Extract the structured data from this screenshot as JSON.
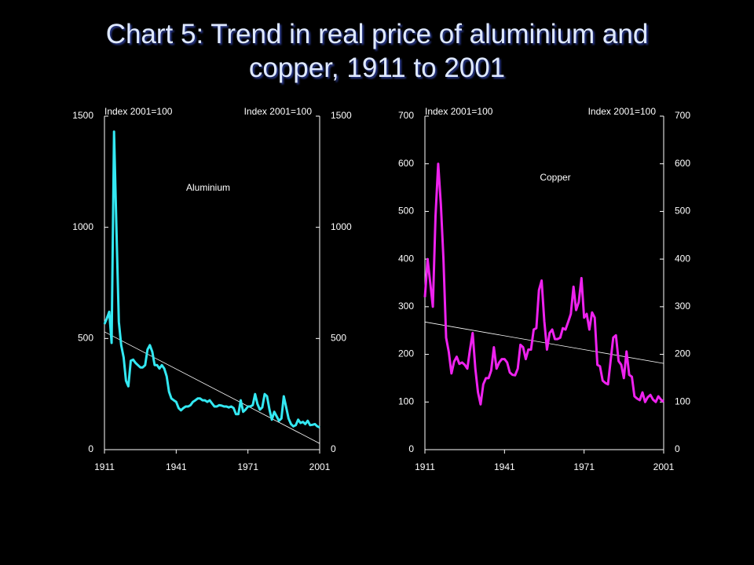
{
  "title": "Chart 5: Trend in real price of aluminium and copper, 1911 to 2001",
  "chart_data": [
    {
      "type": "line",
      "ylabel": "Index 2001=100",
      "y2label": "Index 2001=100",
      "x": [
        1911,
        1912,
        1913,
        1914,
        1915,
        1916,
        1917,
        1918,
        1919,
        1920,
        1921,
        1922,
        1923,
        1924,
        1925,
        1926,
        1927,
        1928,
        1929,
        1930,
        1931,
        1932,
        1933,
        1934,
        1935,
        1936,
        1937,
        1938,
        1939,
        1940,
        1941,
        1942,
        1943,
        1944,
        1945,
        1946,
        1947,
        1948,
        1949,
        1950,
        1951,
        1952,
        1953,
        1954,
        1955,
        1956,
        1957,
        1958,
        1959,
        1960,
        1961,
        1962,
        1963,
        1964,
        1965,
        1966,
        1967,
        1968,
        1969,
        1970,
        1971,
        1972,
        1973,
        1974,
        1975,
        1976,
        1977,
        1978,
        1979,
        1980,
        1981,
        1982,
        1983,
        1984,
        1985,
        1986,
        1987,
        1988,
        1989,
        1990,
        1991,
        1992,
        1993,
        1994,
        1995,
        1996,
        1997,
        1998,
        1999,
        2000,
        2001
      ],
      "series": [
        {
          "name": "Aluminium",
          "color": "#33e8f2",
          "values": [
            565,
            590,
            620,
            480,
            1430,
            1000,
            575,
            470,
            415,
            310,
            285,
            400,
            405,
            390,
            380,
            370,
            370,
            380,
            450,
            470,
            440,
            380,
            380,
            365,
            380,
            365,
            330,
            260,
            230,
            222,
            215,
            187,
            177,
            187,
            194,
            194,
            200,
            215,
            222,
            230,
            230,
            222,
            222,
            215,
            222,
            208,
            194,
            194,
            200,
            198,
            194,
            194,
            190,
            194,
            187,
            160,
            160,
            222,
            170,
            180,
            194,
            194,
            200,
            250,
            205,
            180,
            190,
            250,
            240,
            180,
            135,
            170,
            150,
            130,
            140,
            240,
            190,
            140,
            115,
            105,
            110,
            135,
            120,
            125,
            115,
            130,
            110,
            112,
            115,
            105,
            100
          ]
        }
      ],
      "trendline": {
        "x": [
          1911,
          2001
        ],
        "values": [
          530,
          28
        ],
        "color": "#ffffff"
      },
      "xlim": [
        1911,
        2001
      ],
      "xticks": [
        1911,
        1941,
        1971,
        2001
      ],
      "ylim": [
        0,
        1500
      ],
      "yticks": [
        0,
        500,
        1000,
        1500
      ],
      "y2lim": [
        0,
        1500
      ],
      "y2ticks": [
        0,
        500,
        1000,
        1500
      ]
    },
    {
      "type": "line",
      "ylabel": "Index 2001=100",
      "y2label": "Index 2001=100",
      "x": [
        1911,
        1912,
        1913,
        1914,
        1915,
        1916,
        1917,
        1918,
        1919,
        1920,
        1921,
        1922,
        1923,
        1924,
        1925,
        1926,
        1927,
        1928,
        1929,
        1930,
        1931,
        1932,
        1933,
        1934,
        1935,
        1936,
        1937,
        1938,
        1939,
        1940,
        1941,
        1942,
        1943,
        1944,
        1945,
        1946,
        1947,
        1948,
        1949,
        1950,
        1951,
        1952,
        1953,
        1954,
        1955,
        1956,
        1957,
        1958,
        1959,
        1960,
        1961,
        1962,
        1963,
        1964,
        1965,
        1966,
        1967,
        1968,
        1969,
        1970,
        1971,
        1972,
        1973,
        1974,
        1975,
        1976,
        1977,
        1978,
        1979,
        1980,
        1981,
        1982,
        1983,
        1984,
        1985,
        1986,
        1987,
        1988,
        1989,
        1990,
        1991,
        1992,
        1993,
        1994,
        1995,
        1996,
        1997,
        1998,
        1999,
        2000,
        2001
      ],
      "series": [
        {
          "name": "Copper",
          "color": "#ee22ee",
          "values": [
            320,
            400,
            350,
            300,
            490,
            600,
            515,
            400,
            235,
            205,
            160,
            185,
            195,
            180,
            183,
            178,
            170,
            210,
            245,
            170,
            120,
            95,
            137,
            150,
            150,
            166,
            215,
            170,
            183,
            190,
            190,
            183,
            162,
            157,
            156,
            170,
            220,
            215,
            190,
            210,
            210,
            252,
            255,
            335,
            355,
            270,
            210,
            245,
            252,
            232,
            232,
            235,
            255,
            252,
            268,
            285,
            342,
            293,
            310,
            360,
            277,
            285,
            252,
            288,
            277,
            178,
            175,
            145,
            140,
            137,
            186,
            235,
            240,
            186,
            178,
            150,
            206,
            157,
            153,
            112,
            107,
            104,
            120,
            100,
            110,
            115,
            105,
            100,
            112,
            105,
            100
          ]
        }
      ],
      "trendline": {
        "x": [
          1911,
          2001
        ],
        "values": [
          268,
          181
        ],
        "color": "#ffffff"
      },
      "xlim": [
        1911,
        2001
      ],
      "xticks": [
        1911,
        1941,
        1971,
        2001
      ],
      "ylim": [
        0,
        700
      ],
      "yticks": [
        0,
        100,
        200,
        300,
        400,
        500,
        600,
        700
      ],
      "y2lim": [
        0,
        700
      ],
      "y2ticks": [
        0,
        100,
        200,
        300,
        400,
        500,
        600,
        700
      ]
    }
  ]
}
